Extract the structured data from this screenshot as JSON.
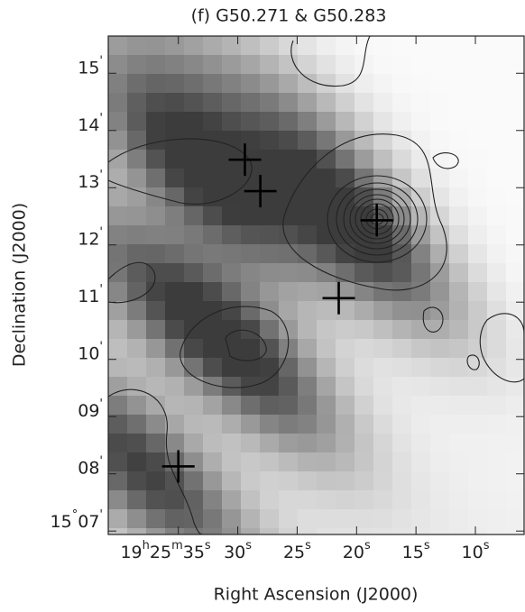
{
  "chart_data": {
    "type": "image",
    "title": "(f) G50.271 & G50.283",
    "x_label": "Right Ascension (J2000)",
    "y_label": "Declination (J2000)",
    "xlim": [
      40.9,
      5.9
    ],
    "ylim": [
      6.94,
      15.65
    ],
    "xticks": [
      {
        "value": 35,
        "label": "19h25m35s"
      },
      {
        "value": 30,
        "label": "30s"
      },
      {
        "value": 25,
        "label": "25s"
      },
      {
        "value": 20,
        "label": "20s"
      },
      {
        "value": 15,
        "label": "15s"
      },
      {
        "value": 10,
        "label": "10s"
      }
    ],
    "yticks": [
      {
        "value": 7,
        "label": "15°07'"
      },
      {
        "value": 8,
        "label": "08'"
      },
      {
        "value": 9,
        "label": "09'"
      },
      {
        "value": 10,
        "label": "10'"
      },
      {
        "value": 11,
        "label": "11'"
      },
      {
        "value": 12,
        "label": "12'"
      },
      {
        "value": 13,
        "label": "13'"
      },
      {
        "value": 14,
        "label": "14'"
      },
      {
        "value": 15,
        "label": "15'"
      }
    ],
    "markers": {
      "x": [
        29.4,
        28.1,
        18.3,
        21.5,
        35.0
      ],
      "y": [
        13.49,
        12.94,
        12.43,
        11.07,
        8.13
      ],
      "color": "#000000"
    }
  }
}
